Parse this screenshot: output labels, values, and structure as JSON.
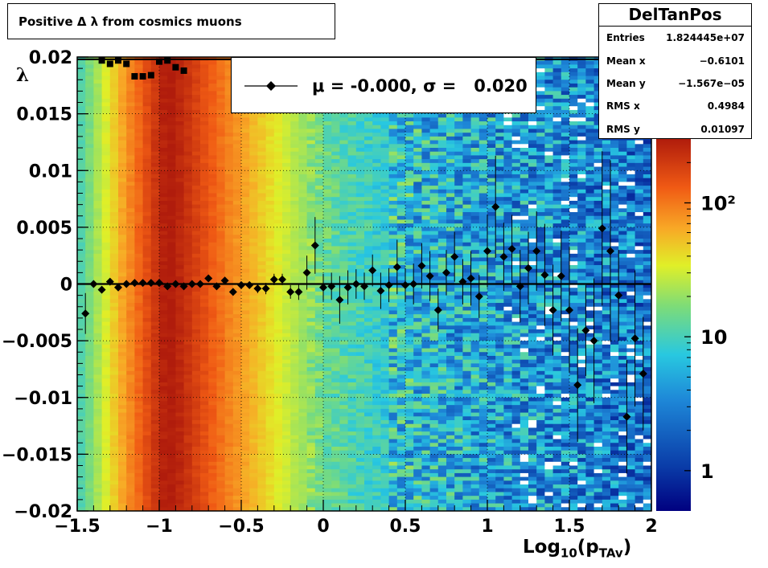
{
  "chart_data": {
    "type": "heatmap",
    "title": "Positive Δ λ from cosmics muons",
    "xlabel": "Log10(pTAv)",
    "xlabel_parts": {
      "main": "Log",
      "sub": "10",
      "paren_open": "(p",
      "sub2": "TAv",
      "paren_close": ")"
    },
    "ylabel": "λ",
    "xlim": [
      -1.5,
      2.0
    ],
    "ylim": [
      -0.02,
      0.02
    ],
    "x_ticks": [
      "−1.5",
      "−1",
      "−0.5",
      "0",
      "0.5",
      "1",
      "1.5",
      "2"
    ],
    "x_tick_values": [
      -1.5,
      -1.0,
      -0.5,
      0.0,
      0.5,
      1.0,
      1.5,
      2.0
    ],
    "y_ticks": [
      "−0.02",
      "−0.015",
      "−0.01",
      "−0.005",
      "0",
      "0.005",
      "0.01",
      "0.015",
      "0.02"
    ],
    "y_tick_values": [
      -0.02,
      -0.015,
      -0.01,
      -0.005,
      0.0,
      0.005,
      0.01,
      0.015,
      0.02
    ],
    "grid": true,
    "colorbar": {
      "scale": "log",
      "labels": [
        "1",
        "10",
        "10²"
      ],
      "label_values": [
        1,
        10,
        100
      ],
      "range": [
        0.5,
        300
      ]
    },
    "stats": {
      "name": "DelTanPos",
      "rows": [
        {
          "label": "Entries",
          "value": "1.824445e+07"
        },
        {
          "label": "Mean x",
          "value": "−0.6101"
        },
        {
          "label": "Mean y",
          "value": "−1.567e−05"
        },
        {
          "label": "RMS x",
          "value": "0.4984"
        },
        {
          "label": "RMS y",
          "value": "0.01097"
        }
      ]
    },
    "legend": {
      "text": "μ = -0.000, σ =   0.020",
      "placement": "top-center"
    },
    "mean_points": {
      "x": [
        -1.45,
        -1.4,
        -1.35,
        -1.3,
        -1.25,
        -1.2,
        -1.15,
        -1.1,
        -1.05,
        -1.0,
        -0.95,
        -0.9,
        -0.85,
        -0.8,
        -0.75,
        -0.7,
        -0.65,
        -0.6,
        -0.55,
        -0.5,
        -0.45,
        -0.4,
        -0.35,
        -0.3,
        -0.25,
        -0.2,
        -0.15,
        -0.1,
        -0.05,
        0.0,
        0.05,
        0.1,
        0.15,
        0.2,
        0.25,
        0.3,
        0.35,
        0.4,
        0.45,
        0.5,
        0.55,
        0.6,
        0.65,
        0.7,
        0.75,
        0.8,
        0.85,
        0.9,
        0.95,
        1.0,
        1.05,
        1.1,
        1.15,
        1.2,
        1.25,
        1.3,
        1.35,
        1.4,
        1.45,
        1.5,
        1.55,
        1.6,
        1.65,
        1.7,
        1.75,
        1.8,
        1.85,
        1.9,
        1.95
      ],
      "y": [
        -0.0026,
        0.0,
        -0.0005,
        0.0002,
        -0.0003,
        0.0,
        0.0001,
        0.0001,
        0.0001,
        0.0001,
        -0.0002,
        0.0,
        -0.0002,
        0.0,
        0.0,
        0.0005,
        -0.0002,
        0.0003,
        -0.0007,
        -0.0001,
        -0.0001,
        -0.0004,
        -0.0004,
        0.0004,
        0.0004,
        -0.0007,
        -0.0007,
        0.001,
        0.0034,
        -0.0003,
        -0.0002,
        -0.0014,
        -0.0003,
        0.0,
        -0.0002,
        0.0012,
        -0.0006,
        -0.0001,
        0.0015,
        -0.0001,
        0.0,
        0.0016,
        0.0007,
        -0.0023,
        0.001,
        0.0024,
        0.0002,
        0.0005,
        -0.0011,
        0.0029,
        0.0068,
        0.0024,
        0.0031,
        -0.0002,
        0.0014,
        0.0029,
        0.0008,
        -0.0023,
        0.0007,
        -0.0023,
        -0.0089,
        -0.0041,
        -0.005,
        0.0049,
        0.0029,
        -0.001,
        -0.0117,
        -0.0048,
        -0.0079
      ],
      "err": [
        0.0018,
        0.0003,
        0.0003,
        0.0003,
        0.0003,
        0.0003,
        0.0002,
        0.0002,
        0.0002,
        0.0002,
        0.0002,
        0.0002,
        0.0002,
        0.0002,
        0.0002,
        0.0002,
        0.0003,
        0.0003,
        0.0003,
        0.0003,
        0.0003,
        0.0004,
        0.0005,
        0.0005,
        0.0005,
        0.0006,
        0.0007,
        0.0015,
        0.0025,
        0.0012,
        0.0012,
        0.0021,
        0.0015,
        0.0013,
        0.0012,
        0.0014,
        0.0016,
        0.0015,
        0.0024,
        0.0015,
        0.0018,
        0.002,
        0.0022,
        0.0019,
        0.002,
        0.0022,
        0.002,
        0.0024,
        0.0019,
        0.0032,
        0.0045,
        0.003,
        0.003,
        0.0032,
        0.0032,
        0.0035,
        0.0045,
        0.004,
        0.004,
        0.0055,
        0.005,
        0.004,
        0.0055,
        0.0068,
        0.008,
        0.004,
        0.005,
        0.006,
        0.005
      ]
    },
    "sigma_points": {
      "x": [
        -1.35,
        -1.3,
        -1.25,
        -1.2,
        -1.15,
        -1.1,
        -1.05,
        -1.0,
        -0.95,
        -0.9,
        -0.85
      ],
      "y": [
        0.0197,
        0.0194,
        0.0197,
        0.0194,
        0.0183,
        0.0183,
        0.0184,
        0.0196,
        0.0197,
        0.0191,
        0.0188
      ]
    },
    "sigma_line": 0.0198,
    "zero_line": 0.0
  }
}
